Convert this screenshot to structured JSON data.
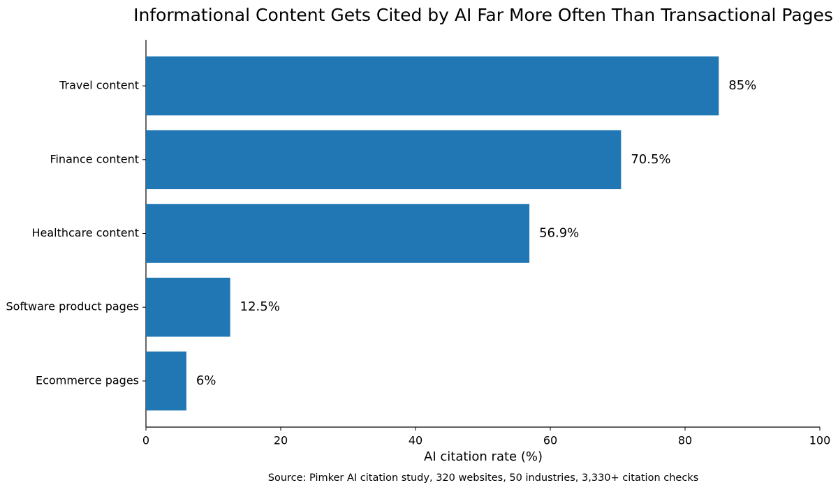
{
  "chart_data": {
    "type": "bar",
    "orientation": "horizontal",
    "title": "Informational Content Gets Cited by AI Far More Often Than Transactional Pages",
    "x_label": "AI citation rate (%)",
    "source": "Source: Pimker AI citation study, 320 websites, 50 industries, 3,330+ citation checks",
    "categories": [
      "Travel content",
      "Finance content",
      "Healthcare content",
      "Software product pages",
      "Ecommerce pages"
    ],
    "values": [
      85,
      70.5,
      56.9,
      12.5,
      6
    ],
    "value_labels": [
      "85%",
      "70.5%",
      "56.9%",
      "12.5%",
      "6%"
    ],
    "color": "#2077b4",
    "xlim": [
      0,
      100
    ],
    "xticks": [
      0,
      20,
      40,
      60,
      80,
      100
    ],
    "grid": false
  }
}
